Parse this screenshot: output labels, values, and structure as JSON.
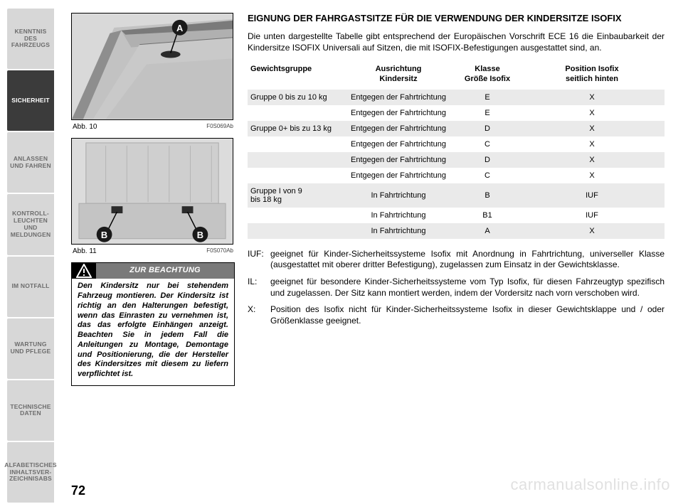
{
  "sidebar": {
    "tabs": [
      {
        "label": "KENNTNIS DES\nFAHRZEUGS",
        "active": false
      },
      {
        "label": "SICHERHEIT",
        "active": true
      },
      {
        "label": "ANLASSEN\nUND FAHREN",
        "active": false
      },
      {
        "label": "KONTROLL-\nLEUCHTEN UND\nMELDUNGEN",
        "active": false
      },
      {
        "label": "IM NOTFALL",
        "active": false
      },
      {
        "label": "WARTUNG\nUND PFLEGE",
        "active": false
      },
      {
        "label": "TECHNISCHE\nDATEN",
        "active": false
      },
      {
        "label": "ALFABETISCHES\nINHALTSVER-\nZEICHNISABS",
        "active": false
      }
    ]
  },
  "figures": {
    "fig1": {
      "caption": "Abb. 10",
      "code": "F0S069Ab",
      "marker_a": "A"
    },
    "fig2": {
      "caption": "Abb. 11",
      "code": "F0S070Ab",
      "marker_b": "B"
    }
  },
  "warning": {
    "title": "ZUR BEACHTUNG",
    "body": "Den Kindersitz nur bei ste­hendem Fahrzeug montie­ren. Der Kindersitz ist richtig an den Halterungen befestigt, wenn das Ein­rasten zu vernehmen ist, das das er­folgte Einhängen anzeigt. Beachten Sie in jedem Fall die Anleitungen zu Montage, Demontage und Positio­nierung, die der Hersteller des Kin­dersitzes mit diesem zu liefern ver­pflichtet ist."
  },
  "section": {
    "title": "EIGNUNG DER FAHRGASTSITZE FÜR DIE VERWENDUNG DER KINDERSITZE ISOFIX",
    "intro": "Die unten dargestellte Tabelle gibt entsprechend der Europäischen Vorschrift ECE 16 die Einbaubarkeit der Kindersitze ISOFIX Universali auf Sitzen, die mit ISOFIX-Befe­stigungen ausgestattet sind, an."
  },
  "table": {
    "headers": {
      "c1": "Gewichtsgruppe",
      "c2a": "Ausrichtung",
      "c2b": "Kindersitz",
      "c3a": "Klasse",
      "c3b": "Größe  Isofix",
      "c4a": "Position Isofix",
      "c4b": "seitlich hinten"
    },
    "rows": [
      {
        "g": "Gruppe 0 bis zu 10 kg",
        "dir": "Entgegen der Fahrtrichtung",
        "cls": "E",
        "pos": "X",
        "shade": true
      },
      {
        "g": "",
        "dir": "Entgegen der Fahrtrichtung",
        "cls": "E",
        "pos": "X",
        "shade": false
      },
      {
        "g": "Gruppe 0+ bis zu 13 kg",
        "dir": "Entgegen der Fahrtrichtung",
        "cls": "D",
        "pos": "X",
        "shade": true
      },
      {
        "g": "",
        "dir": "Entgegen der Fahrtrichtung",
        "cls": "C",
        "pos": "X",
        "shade": false
      },
      {
        "g": "",
        "dir": "Entgegen der Fahrtrichtung",
        "cls": "D",
        "pos": "X",
        "shade": true
      },
      {
        "g": "",
        "dir": "Entgegen der Fahrtrichtung",
        "cls": "C",
        "pos": "X",
        "shade": false
      },
      {
        "g": "Gruppe I von 9\nbis 18 kg",
        "dir": "In Fahrtrichtung",
        "cls": "B",
        "pos": "IUF",
        "shade": true
      },
      {
        "g": "",
        "dir": "In Fahrtrichtung",
        "cls": "B1",
        "pos": "IUF",
        "shade": false
      },
      {
        "g": "",
        "dir": "In Fahrtrichtung",
        "cls": "A",
        "pos": "X",
        "shade": true
      }
    ]
  },
  "definitions": [
    {
      "key": "IUF:",
      "text": "geeignet für Kinder-Sicherheitssysteme Isofix mit Anordnung in Fahrtrichtung, uni­verseller Klasse (ausgestattet mit oberer dritter Befestigung), zugelassen zum Ein­satz in der Gewichtsklasse."
    },
    {
      "key": "IL:",
      "text": "geeignet für besondere Kinder-Sicherheitssysteme vom Typ Isofix, für diesen Fahr­zeugtyp spezifisch und zugelassen. Der Sitz kann montiert werden, indem der Vor­dersitz nach vorn verschoben wird."
    },
    {
      "key": "X:",
      "text": "Position des Isofix nicht für Kinder-Sicherheitssysteme Isofix in dieser Gewichts­klappe und / oder Größenklasse geeignet."
    }
  ],
  "page_no": "72",
  "watermark": "carmanualsonline.info",
  "colors": {
    "tab_inactive_bg": "#d7d7d7",
    "tab_inactive_fg": "#6d6d6d",
    "tab_active_bg": "#3b3b3b",
    "tab_active_fg": "#ffffff",
    "shade_bg": "#eaeaea",
    "warn_title_bg": "#7a7a7a"
  }
}
